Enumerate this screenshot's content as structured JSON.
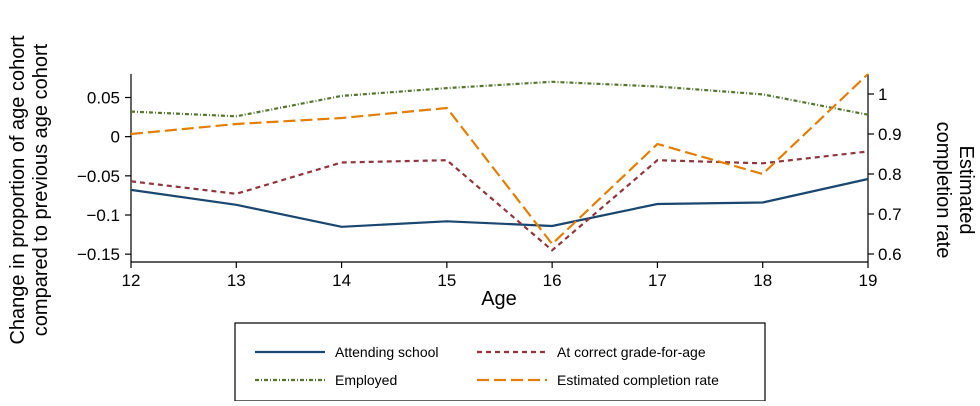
{
  "chart_data": {
    "type": "line",
    "x": [
      12,
      13,
      14,
      15,
      16,
      17,
      18,
      19
    ],
    "xlabel": "Age",
    "xlim": [
      12,
      19
    ],
    "ylabel_line1": "Change in proportion of age cohort",
    "ylabel_line2": "compared to previous age cohort",
    "ylim": [
      -0.16,
      0.08
    ],
    "yticks": [
      0.05,
      0,
      -0.05,
      -0.1,
      -0.15
    ],
    "ytick_labels": [
      "0.05",
      "0",
      "−0.05",
      "−0.1",
      "−0.15"
    ],
    "y2label_line1": "Estimated",
    "y2label_line2": "completion rate",
    "y2lim": [
      0.58,
      1.05
    ],
    "y2ticks": [
      1,
      0.9,
      0.8,
      0.7,
      0.6
    ],
    "y2tick_labels": [
      "1",
      "0.9",
      "0.8",
      "0.7",
      "0.6"
    ],
    "grid": false,
    "legend_position": "bottom",
    "series": [
      {
        "name": "Attending school",
        "axis": "left",
        "color": "#1a476f",
        "dash": "",
        "width": 2.2,
        "values": [
          -0.068,
          -0.087,
          -0.115,
          -0.108,
          -0.114,
          -0.086,
          -0.084,
          -0.054
        ]
      },
      {
        "name": "At correct grade-for-age",
        "axis": "left",
        "color": "#90353b",
        "dash": "5,4",
        "width": 2.2,
        "values": [
          -0.057,
          -0.073,
          -0.033,
          -0.03,
          -0.145,
          -0.03,
          -0.034,
          -0.019
        ]
      },
      {
        "name": "Employed",
        "axis": "left",
        "color": "#55752f",
        "dash": "4,2,1,2",
        "width": 2.2,
        "values": [
          0.032,
          0.026,
          0.052,
          0.062,
          0.07,
          0.064,
          0.054,
          0.028
        ]
      },
      {
        "name": "Estimated completion rate",
        "axis": "right",
        "color": "#e37e00",
        "dash": "12,5",
        "width": 2.2,
        "values": [
          0.9,
          0.925,
          0.94,
          0.965,
          0.625,
          0.875,
          0.8,
          1.05
        ]
      }
    ]
  }
}
